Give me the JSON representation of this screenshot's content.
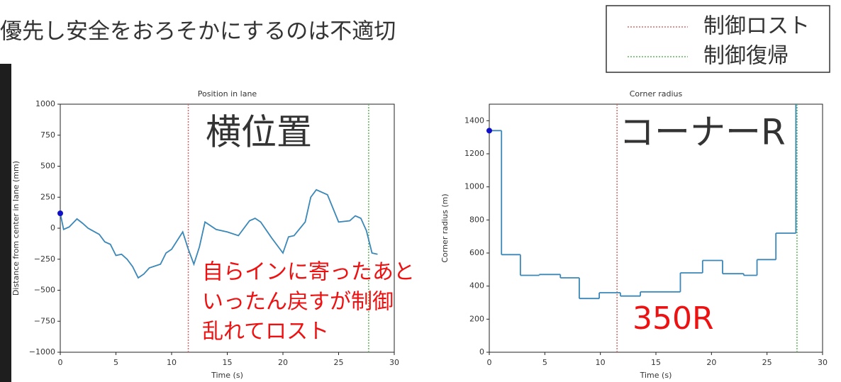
{
  "heading": "優先し安全をおろそかにするのは不適切",
  "legend": [
    {
      "label": "制御ロスト",
      "color": "#e06666"
    },
    {
      "label": "制御復帰",
      "color": "#5cb85c"
    }
  ],
  "chart_data": [
    {
      "type": "line",
      "title": "Position in lane",
      "xlabel": "Time (s)",
      "ylabel": "Distance from center in lane (mm)",
      "label": "横位置",
      "note_lines": [
        "自らインに寄ったあと",
        "いったん戻すが制御",
        "乱れてロスト"
      ],
      "color": "#3a87b8",
      "marker_color": "#1010c8",
      "x": [
        0,
        0.3,
        0.8,
        1.5,
        2,
        2.5,
        3.5,
        4,
        4.5,
        5,
        5.5,
        6,
        6.5,
        7,
        7.5,
        8,
        9,
        9.5,
        10,
        11,
        11.5,
        12,
        12.5,
        13,
        14,
        15,
        16,
        17,
        17.5,
        18,
        19,
        20,
        20.5,
        21,
        22,
        22.5,
        23,
        24,
        25,
        26,
        26.5,
        27,
        27.5,
        28,
        28.5
      ],
      "values": [
        120,
        -10,
        10,
        75,
        40,
        0,
        -50,
        -110,
        -130,
        -220,
        -210,
        -250,
        -310,
        -400,
        -370,
        -320,
        -290,
        -200,
        -170,
        -30,
        -170,
        -290,
        -150,
        50,
        -10,
        -30,
        -60,
        60,
        80,
        50,
        -80,
        -200,
        -70,
        -60,
        50,
        250,
        310,
        270,
        50,
        60,
        100,
        80,
        -20,
        -200,
        -210
      ],
      "vlines": [
        11.5,
        27.7
      ],
      "xlim": [
        0,
        30
      ],
      "xticks": [
        0,
        5,
        10,
        15,
        20,
        25,
        30
      ],
      "ylim": [
        -1000,
        1000
      ],
      "yticks": [
        {
          "value": -1000,
          "label": "−1000"
        },
        {
          "value": -750,
          "label": "−750"
        },
        {
          "value": -500,
          "label": "−500"
        },
        {
          "value": -250,
          "label": "−250"
        },
        0,
        250,
        500,
        750,
        1000
      ]
    },
    {
      "type": "step",
      "title": "Corner radius",
      "xlabel": "Time (s)",
      "ylabel": "Corner radius (m)",
      "label": "コーナーR",
      "note_lines": [
        "350R"
      ],
      "color": "#3a87b8",
      "marker_color": "#1010c8",
      "x": [
        0,
        1.1,
        2.8,
        4.5,
        6.4,
        8.1,
        9.9,
        11.8,
        13.6,
        17.2,
        19.2,
        21,
        22.9,
        24.1,
        25.8,
        27.6
      ],
      "values": [
        1340,
        590,
        465,
        470,
        450,
        325,
        360,
        340,
        365,
        480,
        555,
        475,
        465,
        560,
        720,
        1500
      ],
      "vlines": [
        11.5,
        27.7
      ],
      "xlim": [
        0,
        30
      ],
      "xticks": [
        0,
        5,
        10,
        15,
        20,
        25,
        30
      ],
      "ylim": [
        0,
        1500
      ],
      "yticks": [
        0,
        200,
        400,
        600,
        800,
        1000,
        1200,
        1400
      ]
    }
  ]
}
